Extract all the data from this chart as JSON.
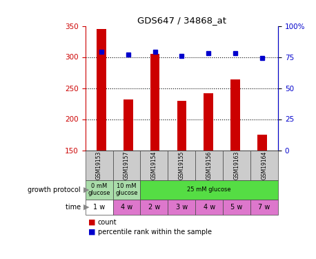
{
  "title": "GDS647 / 34868_at",
  "samples": [
    "GSM19153",
    "GSM19157",
    "GSM19154",
    "GSM19155",
    "GSM19156",
    "GSM19163",
    "GSM19164"
  ],
  "bar_values": [
    345,
    232,
    305,
    230,
    242,
    264,
    175
  ],
  "percentile_values": [
    79,
    77,
    79,
    76,
    78,
    78,
    74
  ],
  "bar_color": "#cc0000",
  "percentile_color": "#0000cc",
  "ylim_left": [
    150,
    350
  ],
  "ylim_right": [
    0,
    100
  ],
  "yticks_left": [
    150,
    200,
    250,
    300,
    350
  ],
  "yticks_right": [
    0,
    25,
    50,
    75,
    100
  ],
  "grid_values": [
    200,
    250,
    300
  ],
  "legend_count_label": "count",
  "legend_percentile_label": "percentile rank within the sample",
  "axis_label_color_left": "#cc0000",
  "axis_label_color_right": "#0000cc",
  "sample_box_color": "#cccccc",
  "growth_0mM_color": "#aaddaa",
  "growth_10mM_color": "#aaddaa",
  "growth_25mM_color": "#55dd44",
  "time_col0_color": "#ffffff",
  "time_other_color": "#dd77cc",
  "growth_protocol_label": "growth protocol",
  "time_label": "time",
  "time_cells": [
    "1 w",
    "4 w",
    "2 w",
    "3 w",
    "4 w",
    "5 w",
    "7 w"
  ]
}
